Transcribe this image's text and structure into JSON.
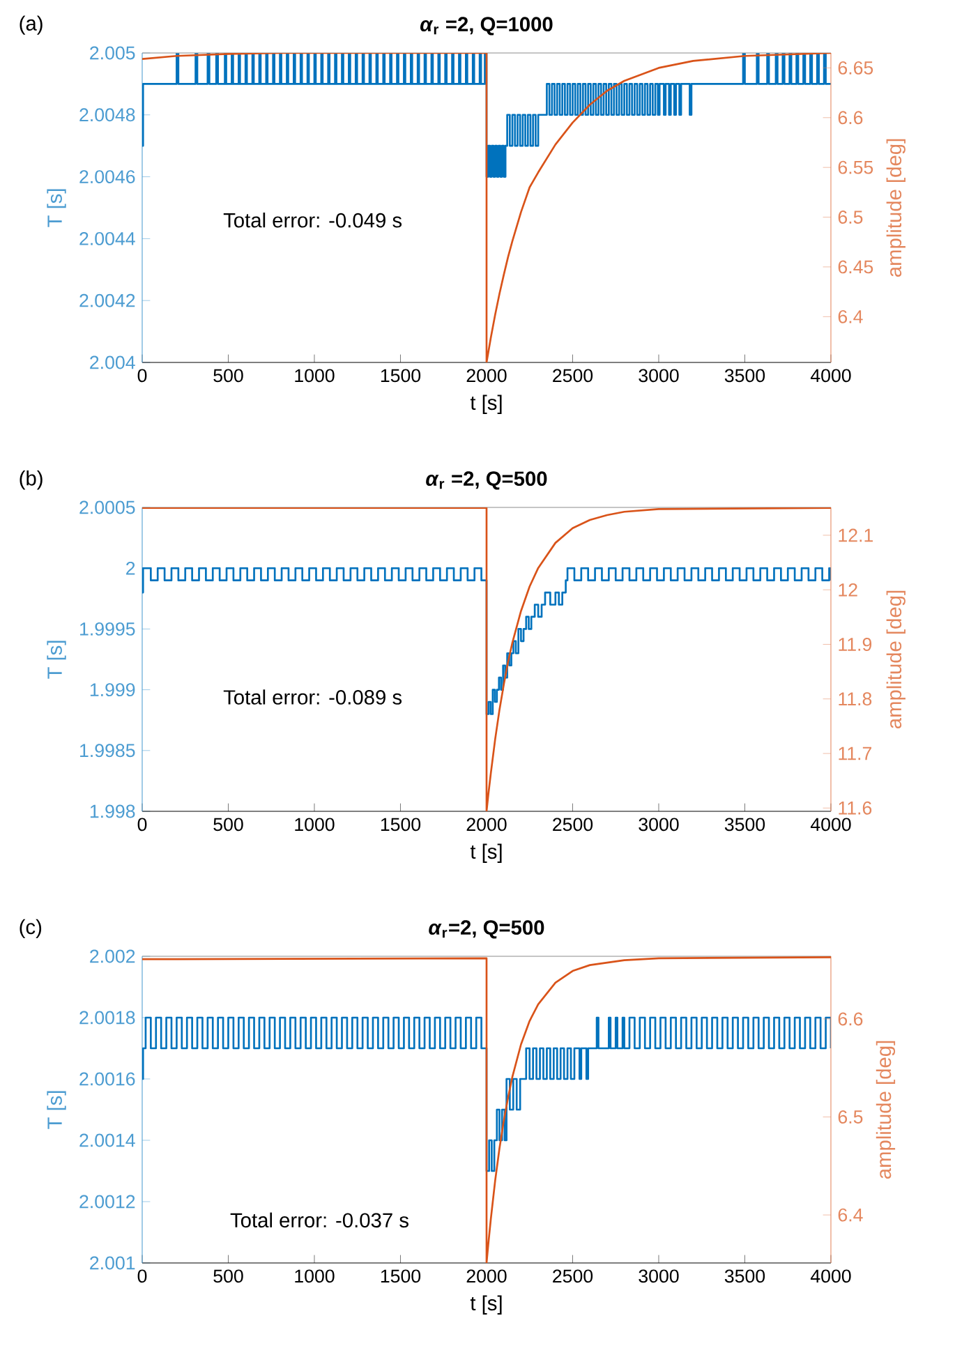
{
  "chart_data": [
    {
      "type": "line",
      "title": "*α*$_{r}$ =2, Q=1000",
      "xlabel": "t [s]",
      "ylabel": "T [s]",
      "y2label": "amplitude [deg]",
      "annotations": [
        "(a)",
        "Total error: -0.049 s"
      ],
      "xlim": [
        0,
        4000
      ],
      "xticks": [
        0,
        500,
        1000,
        1500,
        2000,
        2500,
        3000,
        3500,
        4000
      ],
      "ylim": [
        2.004,
        2.005
      ],
      "yticks": [
        2.004,
        2.0042,
        2.0044,
        2.0046,
        2.0048,
        2.005
      ],
      "y2lim": [
        6.354,
        6.665
      ],
      "y2ticks": [
        6.4,
        6.45,
        6.5,
        6.55,
        6.6,
        6.65
      ],
      "series": [
        {
          "type": "step",
          "color": "#0072bd",
          "x": [
            0,
            5,
            200,
            210,
            310,
            320,
            380,
            390,
            430,
            440,
            480,
            488,
            520,
            528,
            560,
            568,
            600,
            608,
            640,
            648,
            680,
            688,
            720,
            728,
            760,
            768,
            800,
            808,
            840,
            848,
            880,
            888,
            920,
            928,
            960,
            968,
            1000,
            1008,
            1040,
            1048,
            1080,
            1088,
            1120,
            1128,
            1160,
            1168,
            1200,
            1208,
            1240,
            1248,
            1280,
            1288,
            1320,
            1328,
            1360,
            1368,
            1400,
            1408,
            1440,
            1448,
            1480,
            1488,
            1520,
            1528,
            1560,
            1568,
            1600,
            1608,
            1640,
            1648,
            1680,
            1688,
            1720,
            1728,
            1760,
            1768,
            1800,
            1808,
            1840,
            1848,
            1880,
            1888,
            1920,
            1928,
            1960,
            1968,
            1990,
            2000,
            2010,
            2020,
            2030,
            2040,
            2050,
            2060,
            2070,
            2080,
            2090,
            2100,
            2110,
            2120,
            2135,
            2150,
            2165,
            2180,
            2195,
            2210,
            2225,
            2240,
            2255,
            2270,
            2285,
            2300,
            2350,
            2365,
            2380,
            2395,
            2410,
            2425,
            2440,
            2455,
            2470,
            2485,
            2500,
            2515,
            2530,
            2545,
            2560,
            2575,
            2590,
            2605,
            2620,
            2635,
            2650,
            2665,
            2680,
            2695,
            2710,
            2725,
            2740,
            2755,
            2770,
            2785,
            2800,
            2815,
            2830,
            2845,
            2860,
            2875,
            2890,
            2905,
            2920,
            2935,
            2950,
            2965,
            2980,
            2995,
            3005,
            3030,
            3040,
            3060,
            3070,
            3090,
            3100,
            3120,
            3130,
            3180,
            3190,
            3490,
            3500,
            3570,
            3580,
            3630,
            3640,
            3680,
            3690,
            3720,
            3730,
            3760,
            3770,
            3800,
            3810,
            3840,
            3850,
            3880,
            3890,
            3920,
            3930,
            3960,
            3970,
            4000
          ],
          "values": [
            2.0047,
            2.0049,
            2.005,
            2.0049,
            2.005,
            2.0049,
            2.005,
            2.0049,
            2.005,
            2.0049,
            2.005,
            2.0049,
            2.005,
            2.0049,
            2.005,
            2.0049,
            2.005,
            2.0049,
            2.005,
            2.0049,
            2.005,
            2.0049,
            2.005,
            2.0049,
            2.005,
            2.0049,
            2.005,
            2.0049,
            2.005,
            2.0049,
            2.005,
            2.0049,
            2.005,
            2.0049,
            2.005,
            2.0049,
            2.005,
            2.0049,
            2.005,
            2.0049,
            2.005,
            2.0049,
            2.005,
            2.0049,
            2.005,
            2.0049,
            2.005,
            2.0049,
            2.005,
            2.0049,
            2.005,
            2.0049,
            2.005,
            2.0049,
            2.005,
            2.0049,
            2.005,
            2.0049,
            2.005,
            2.0049,
            2.005,
            2.0049,
            2.005,
            2.0049,
            2.005,
            2.0049,
            2.005,
            2.0049,
            2.005,
            2.0049,
            2.005,
            2.0049,
            2.005,
            2.0049,
            2.005,
            2.0049,
            2.005,
            2.0049,
            2.005,
            2.0049,
            2.005,
            2.0049,
            2.005,
            2.0049,
            2.005,
            2.0049,
            2.005,
            2.0046,
            2.0047,
            2.0046,
            2.0047,
            2.0046,
            2.0047,
            2.0046,
            2.0047,
            2.0046,
            2.0047,
            2.0046,
            2.0047,
            2.0048,
            2.0047,
            2.0048,
            2.0047,
            2.0048,
            2.0047,
            2.0048,
            2.0047,
            2.0048,
            2.0047,
            2.0048,
            2.0047,
            2.0048,
            2.0049,
            2.0048,
            2.0049,
            2.0048,
            2.0049,
            2.0048,
            2.0049,
            2.0048,
            2.0049,
            2.0048,
            2.0049,
            2.0048,
            2.0049,
            2.0048,
            2.0049,
            2.0048,
            2.0049,
            2.0048,
            2.0049,
            2.0048,
            2.0049,
            2.0048,
            2.0049,
            2.0048,
            2.0049,
            2.0048,
            2.0049,
            2.0048,
            2.0049,
            2.0048,
            2.0049,
            2.0048,
            2.0049,
            2.0048,
            2.0049,
            2.0048,
            2.0049,
            2.0048,
            2.0049,
            2.0048,
            2.0049,
            2.0048,
            2.0049,
            2.0048,
            2.0049,
            2.0048,
            2.0049,
            2.0048,
            2.0049,
            2.0048,
            2.0049,
            2.0048,
            2.0049,
            2.0048,
            2.0049,
            2.005,
            2.0049,
            2.005,
            2.0049,
            2.005,
            2.0049,
            2.005,
            2.0049,
            2.005,
            2.0049,
            2.005,
            2.0049,
            2.005,
            2.0049,
            2.005,
            2.0049,
            2.005,
            2.0049,
            2.005,
            2.0049,
            2.005,
            2.0049,
            2.0049
          ]
        },
        {
          "axis": "y2",
          "color": "#d95319",
          "x": [
            0,
            200,
            500,
            800,
            1200,
            2000,
            2000,
            2010,
            2025,
            2050,
            2075,
            2100,
            2125,
            2150,
            2200,
            2250,
            2300,
            2400,
            2500,
            2600,
            2700,
            2800,
            3000,
            3200,
            3500,
            4000
          ],
          "values": [
            6.659,
            6.662,
            6.664,
            6.665,
            6.665,
            6.665,
            6.354,
            6.364,
            6.379,
            6.402,
            6.423,
            6.442,
            6.46,
            6.476,
            6.505,
            6.53,
            6.545,
            6.573,
            6.595,
            6.613,
            6.627,
            6.637,
            6.65,
            6.657,
            6.662,
            6.665
          ]
        }
      ]
    },
    {
      "type": "line",
      "title": "*α*$_{r}$ =2, Q=500",
      "xlabel": "t [s]",
      "ylabel": "T [s]",
      "y2label": "amplitude [deg]",
      "annotations": [
        "(b)",
        "Total error: -0.089 s"
      ],
      "xlim": [
        0,
        4000
      ],
      "xticks": [
        0,
        500,
        1000,
        1500,
        2000,
        2500,
        3000,
        3500,
        4000
      ],
      "ylim": [
        1.998,
        2.0005
      ],
      "yticks": [
        1.998,
        1.9985,
        1.999,
        1.9995,
        2,
        2.0005
      ],
      "y2lim": [
        11.594,
        12.151
      ],
      "y2ticks": [
        11.6,
        11.7,
        11.8,
        11.9,
        12,
        12.1
      ],
      "series": [
        {
          "type": "step",
          "color": "#0072bd",
          "x": [
            0,
            5,
            10,
            50,
            90,
            130,
            170,
            210,
            250,
            290,
            330,
            370,
            410,
            450,
            490,
            530,
            570,
            610,
            650,
            690,
            730,
            770,
            810,
            850,
            890,
            930,
            970,
            1010,
            1050,
            1090,
            1130,
            1170,
            1210,
            1250,
            1290,
            1330,
            1370,
            1410,
            1450,
            1490,
            1530,
            1570,
            1610,
            1650,
            1690,
            1730,
            1770,
            1810,
            1850,
            1890,
            1930,
            1970,
            2000,
            2012,
            2024,
            2036,
            2048,
            2060,
            2072,
            2084,
            2096,
            2108,
            2120,
            2132,
            2144,
            2156,
            2170,
            2185,
            2200,
            2215,
            2230,
            2245,
            2260,
            2280,
            2300,
            2320,
            2340,
            2370,
            2400,
            2420,
            2440,
            2460,
            2470,
            2510,
            2550,
            2590,
            2630,
            2670,
            2710,
            2750,
            2790,
            2830,
            2870,
            2910,
            2950,
            2990,
            3030,
            3070,
            3110,
            3150,
            3190,
            3230,
            3270,
            3310,
            3350,
            3390,
            3430,
            3470,
            3510,
            3550,
            3590,
            3630,
            3670,
            3710,
            3750,
            3790,
            3830,
            3870,
            3910,
            3950,
            3990,
            4000
          ],
          "values": [
            1.9998,
            2.0,
            2.0,
            1.9999,
            2.0,
            1.9999,
            2.0,
            1.9999,
            2.0,
            1.9999,
            2.0,
            1.9999,
            2.0,
            1.9999,
            2.0,
            1.9999,
            2.0,
            1.9999,
            2.0,
            1.9999,
            2.0,
            1.9999,
            2.0,
            1.9999,
            2.0,
            1.9999,
            2.0,
            1.9999,
            2.0,
            1.9999,
            2.0,
            1.9999,
            2.0,
            1.9999,
            2.0,
            1.9999,
            2.0,
            1.9999,
            2.0,
            1.9999,
            2.0,
            1.9999,
            2.0,
            1.9999,
            2.0,
            1.9999,
            2.0,
            1.9999,
            2.0,
            1.9999,
            2.0,
            1.9999,
            1.9988,
            1.9989,
            1.9988,
            1.999,
            1.9989,
            1.999,
            1.9991,
            1.999,
            1.9992,
            1.9991,
            1.9993,
            1.9992,
            1.9993,
            1.9994,
            1.9993,
            1.9995,
            1.9994,
            1.9995,
            1.9996,
            1.9995,
            1.9996,
            1.9997,
            1.9996,
            1.9997,
            1.9998,
            1.9997,
            1.9998,
            1.9997,
            1.9998,
            1.9999,
            2.0,
            1.9999,
            2.0,
            1.9999,
            2.0,
            1.9999,
            2.0,
            1.9999,
            2.0,
            1.9999,
            2.0,
            1.9999,
            2.0,
            1.9999,
            2.0,
            1.9999,
            2.0,
            1.9999,
            2.0,
            1.9999,
            2.0,
            1.9999,
            2.0,
            1.9999,
            2.0,
            1.9999,
            2.0,
            1.9999,
            2.0,
            1.9999,
            2.0,
            1.9999,
            2.0,
            1.9999,
            2.0,
            1.9999,
            2.0,
            1.9999,
            2.0,
            1.9999
          ]
        },
        {
          "axis": "y2",
          "color": "#d95319",
          "x": [
            0,
            2000,
            2000,
            2010,
            2025,
            2050,
            2075,
            2100,
            2125,
            2150,
            2200,
            2250,
            2300,
            2400,
            2500,
            2600,
            2700,
            2800,
            3000,
            4000
          ],
          "values": [
            12.15,
            12.15,
            11.594,
            11.624,
            11.664,
            11.726,
            11.78,
            11.826,
            11.868,
            11.903,
            11.961,
            12.006,
            12.04,
            12.086,
            12.113,
            12.128,
            12.137,
            12.143,
            12.148,
            12.15
          ]
        }
      ]
    },
    {
      "type": "line",
      "title": "*α*$_{r}$=2, Q=500",
      "xlabel": "t [s]",
      "ylabel": "T [s]",
      "y2label": "amplitude [deg]",
      "annotations": [
        "(c)",
        "Total error: -0.037 s"
      ],
      "xlim": [
        0,
        4000
      ],
      "xticks": [
        0,
        500,
        1000,
        1500,
        2000,
        2500,
        3000,
        3500,
        4000
      ],
      "ylim": [
        2.001,
        2.002
      ],
      "yticks": [
        2.001,
        2.0012,
        2.0014,
        2.0016,
        2.0018,
        2.002
      ],
      "y2lim": [
        6.351,
        6.664
      ],
      "y2ticks": [
        6.4,
        6.5,
        6.6
      ],
      "series": [
        {
          "type": "step",
          "color": "#0072bd",
          "x": [
            0,
            5,
            20,
            50,
            80,
            110,
            140,
            170,
            200,
            230,
            260,
            290,
            320,
            350,
            380,
            410,
            440,
            470,
            500,
            530,
            560,
            590,
            620,
            650,
            680,
            710,
            740,
            770,
            800,
            830,
            860,
            890,
            920,
            950,
            980,
            1010,
            1040,
            1070,
            1100,
            1130,
            1160,
            1190,
            1220,
            1250,
            1280,
            1310,
            1340,
            1370,
            1400,
            1430,
            1460,
            1490,
            1520,
            1550,
            1580,
            1610,
            1640,
            1670,
            1700,
            1730,
            1760,
            1790,
            1820,
            1850,
            1880,
            1910,
            1940,
            1970,
            2000,
            2015,
            2030,
            2045,
            2060,
            2075,
            2090,
            2105,
            2116,
            2135,
            2155,
            2175,
            2195,
            2230,
            2250,
            2270,
            2290,
            2310,
            2330,
            2350,
            2370,
            2390,
            2410,
            2430,
            2450,
            2470,
            2490,
            2510,
            2540,
            2550,
            2580,
            2590,
            2640,
            2650,
            2710,
            2720,
            2750,
            2760,
            2790,
            2800,
            2830,
            2860,
            2890,
            2920,
            2950,
            2980,
            3010,
            3040,
            3070,
            3100,
            3130,
            3160,
            3190,
            3220,
            3250,
            3280,
            3310,
            3340,
            3370,
            3400,
            3430,
            3460,
            3490,
            3520,
            3550,
            3580,
            3610,
            3640,
            3670,
            3700,
            3730,
            3760,
            3790,
            3820,
            3850,
            3880,
            3910,
            3940,
            3970,
            4000
          ],
          "values": [
            2.0016,
            2.0017,
            2.0018,
            2.0017,
            2.0018,
            2.0017,
            2.0018,
            2.0017,
            2.0018,
            2.0017,
            2.0018,
            2.0017,
            2.0018,
            2.0017,
            2.0018,
            2.0017,
            2.0018,
            2.0017,
            2.0018,
            2.0017,
            2.0018,
            2.0017,
            2.0018,
            2.0017,
            2.0018,
            2.0017,
            2.0018,
            2.0017,
            2.0018,
            2.0017,
            2.0018,
            2.0017,
            2.0018,
            2.0017,
            2.0018,
            2.0017,
            2.0018,
            2.0017,
            2.0018,
            2.0017,
            2.0018,
            2.0017,
            2.0018,
            2.0017,
            2.0018,
            2.0017,
            2.0018,
            2.0017,
            2.0018,
            2.0017,
            2.0018,
            2.0017,
            2.0018,
            2.0017,
            2.0018,
            2.0017,
            2.0018,
            2.0017,
            2.0018,
            2.0017,
            2.0018,
            2.0017,
            2.0018,
            2.0017,
            2.0018,
            2.0017,
            2.0018,
            2.0017,
            2.0013,
            2.0014,
            2.0013,
            2.0014,
            2.0015,
            2.0014,
            2.0015,
            2.0014,
            2.0016,
            2.0015,
            2.0016,
            2.0015,
            2.0016,
            2.0017,
            2.0016,
            2.0017,
            2.0016,
            2.0017,
            2.0016,
            2.0017,
            2.0016,
            2.0017,
            2.0016,
            2.0017,
            2.0016,
            2.0017,
            2.0016,
            2.0017,
            2.0016,
            2.0017,
            2.0016,
            2.0017,
            2.0018,
            2.0017,
            2.0018,
            2.0017,
            2.0018,
            2.0017,
            2.0018,
            2.0017,
            2.0018,
            2.0017,
            2.0018,
            2.0017,
            2.0018,
            2.0017,
            2.0018,
            2.0017,
            2.0018,
            2.0017,
            2.0018,
            2.0017,
            2.0018,
            2.0017,
            2.0018,
            2.0017,
            2.0018,
            2.0017,
            2.0018,
            2.0017,
            2.0018,
            2.0017,
            2.0018,
            2.0017,
            2.0018,
            2.0017,
            2.0018,
            2.0017,
            2.0018,
            2.0017,
            2.0018,
            2.0017,
            2.0018,
            2.0017,
            2.0018,
            2.0017,
            2.0018,
            2.0017,
            2.0018,
            2.0017
          ]
        },
        {
          "axis": "y2",
          "color": "#d95319",
          "x": [
            0,
            2000,
            2000,
            2010,
            2025,
            2050,
            2075,
            2100,
            2125,
            2150,
            2200,
            2250,
            2300,
            2400,
            2500,
            2600,
            2800,
            3000,
            4000
          ],
          "values": [
            6.661,
            6.662,
            6.351,
            6.37,
            6.396,
            6.435,
            6.468,
            6.496,
            6.52,
            6.541,
            6.574,
            6.598,
            6.615,
            6.637,
            6.649,
            6.655,
            6.66,
            6.662,
            6.663
          ]
        }
      ]
    }
  ]
}
